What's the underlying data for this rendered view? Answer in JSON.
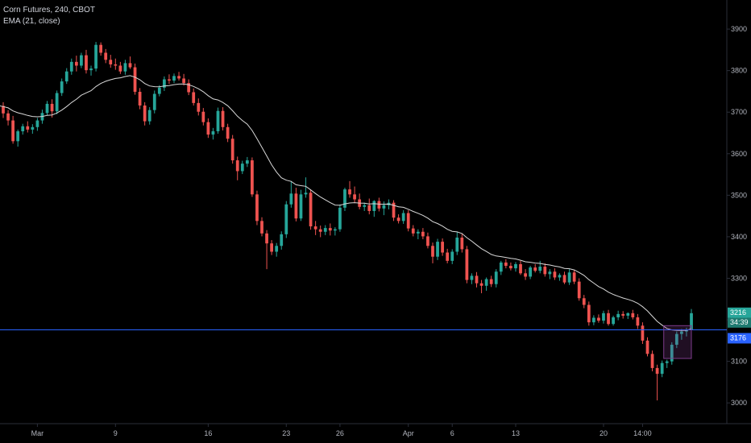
{
  "legend": {
    "title": "Corn Futures, 240, CBOT",
    "indicator": "EMA (21, close)"
  },
  "colors": {
    "background": "#000000",
    "up": "#26a69a",
    "down": "#ef5350",
    "ema": "#d9d9d9",
    "priceline": "#2962ff",
    "axis_text": "#b2b5be",
    "axis_line": "#2a2e39",
    "box": "#7e3c8c"
  },
  "price_badges": {
    "last": "3216",
    "countdown": "34:39",
    "line": "3176"
  },
  "chart_data": {
    "type": "candlestick",
    "title": "",
    "y_ticks": [
      "3900",
      "3800",
      "3700",
      "3600",
      "3500",
      "3400",
      "3300",
      "3200",
      "3100",
      "3000"
    ],
    "x_ticks": [
      "Mar",
      "9",
      "16",
      "23",
      "26",
      "Apr",
      "6",
      "13",
      "20",
      "14:00"
    ],
    "ylim": [
      2950,
      3970
    ],
    "horizontal_line": 3176,
    "candles": [
      [
        3715,
        3724,
        3686,
        3697
      ],
      [
        3697,
        3705,
        3668,
        3680
      ],
      [
        3680,
        3691,
        3624,
        3630
      ],
      [
        3630,
        3658,
        3617,
        3654
      ],
      [
        3654,
        3672,
        3646,
        3666
      ],
      [
        3666,
        3678,
        3651,
        3658
      ],
      [
        3658,
        3671,
        3648,
        3664
      ],
      [
        3664,
        3686,
        3655,
        3680
      ],
      [
        3680,
        3706,
        3672,
        3698
      ],
      [
        3698,
        3727,
        3692,
        3720
      ],
      [
        3720,
        3731,
        3687,
        3702
      ],
      [
        3702,
        3752,
        3695,
        3746
      ],
      [
        3746,
        3781,
        3739,
        3774
      ],
      [
        3774,
        3806,
        3768,
        3798
      ],
      [
        3798,
        3829,
        3790,
        3821
      ],
      [
        3821,
        3836,
        3798,
        3812
      ],
      [
        3812,
        3843,
        3806,
        3837
      ],
      [
        3837,
        3850,
        3793,
        3801
      ],
      [
        3801,
        3812,
        3788,
        3805
      ],
      [
        3805,
        3869,
        3798,
        3862
      ],
      [
        3862,
        3868,
        3836,
        3843
      ],
      [
        3843,
        3852,
        3818,
        3826
      ],
      [
        3826,
        3838,
        3807,
        3815
      ],
      [
        3815,
        3829,
        3802,
        3812
      ],
      [
        3812,
        3821,
        3792,
        3798
      ],
      [
        3798,
        3826,
        3790,
        3818
      ],
      [
        3818,
        3834,
        3804,
        3808
      ],
      [
        3808,
        3817,
        3742,
        3749
      ],
      [
        3749,
        3758,
        3707,
        3716
      ],
      [
        3716,
        3724,
        3668,
        3678
      ],
      [
        3678,
        3712,
        3670,
        3705
      ],
      [
        3705,
        3752,
        3697,
        3744
      ],
      [
        3744,
        3765,
        3738,
        3759
      ],
      [
        3759,
        3786,
        3751,
        3779
      ],
      [
        3779,
        3791,
        3768,
        3776
      ],
      [
        3776,
        3793,
        3770,
        3787
      ],
      [
        3787,
        3797,
        3776,
        3781
      ],
      [
        3781,
        3792,
        3764,
        3770
      ],
      [
        3770,
        3779,
        3741,
        3748
      ],
      [
        3748,
        3757,
        3716,
        3722
      ],
      [
        3722,
        3733,
        3692,
        3701
      ],
      [
        3701,
        3710,
        3668,
        3676
      ],
      [
        3676,
        3685,
        3638,
        3646
      ],
      [
        3646,
        3662,
        3634,
        3654
      ],
      [
        3654,
        3711,
        3648,
        3703
      ],
      [
        3703,
        3712,
        3656,
        3664
      ],
      [
        3664,
        3672,
        3628,
        3636
      ],
      [
        3636,
        3645,
        3576,
        3584
      ],
      [
        3584,
        3593,
        3536,
        3558
      ],
      [
        3558,
        3583,
        3551,
        3576
      ],
      [
        3576,
        3592,
        3568,
        3584
      ],
      [
        3584,
        3591,
        3496,
        3502
      ],
      [
        3502,
        3511,
        3428,
        3438
      ],
      [
        3438,
        3447,
        3401,
        3408
      ],
      [
        3408,
        3416,
        3322,
        3384
      ],
      [
        3384,
        3392,
        3356,
        3364
      ],
      [
        3364,
        3385,
        3352,
        3378
      ],
      [
        3378,
        3413,
        3369,
        3406
      ],
      [
        3406,
        3486,
        3397,
        3478
      ],
      [
        3478,
        3534,
        3470,
        3504
      ],
      [
        3504,
        3518,
        3437,
        3444
      ],
      [
        3444,
        3513,
        3438,
        3502
      ],
      [
        3502,
        3543,
        3494,
        3506
      ],
      [
        3506,
        3514,
        3417,
        3425
      ],
      [
        3425,
        3438,
        3404,
        3418
      ],
      [
        3418,
        3427,
        3399,
        3412
      ],
      [
        3412,
        3428,
        3404,
        3421
      ],
      [
        3421,
        3432,
        3403,
        3415
      ],
      [
        3415,
        3423,
        3403,
        3418
      ],
      [
        3418,
        3478,
        3412,
        3470
      ],
      [
        3470,
        3518,
        3462,
        3514
      ],
      [
        3514,
        3534,
        3494,
        3502
      ],
      [
        3502,
        3521,
        3481,
        3490
      ],
      [
        3490,
        3504,
        3466,
        3472
      ],
      [
        3472,
        3482,
        3462,
        3476
      ],
      [
        3476,
        3492,
        3454,
        3462
      ],
      [
        3462,
        3488,
        3448,
        3486
      ],
      [
        3486,
        3494,
        3461,
        3468
      ],
      [
        3468,
        3485,
        3452,
        3476
      ],
      [
        3476,
        3490,
        3466,
        3482
      ],
      [
        3482,
        3488,
        3438,
        3446
      ],
      [
        3446,
        3454,
        3432,
        3438
      ],
      [
        3438,
        3464,
        3431,
        3457
      ],
      [
        3457,
        3464,
        3413,
        3420
      ],
      [
        3420,
        3428,
        3401,
        3408
      ],
      [
        3408,
        3418,
        3394,
        3412
      ],
      [
        3412,
        3421,
        3394,
        3401
      ],
      [
        3401,
        3410,
        3372,
        3378
      ],
      [
        3378,
        3386,
        3336,
        3352
      ],
      [
        3352,
        3395,
        3344,
        3388
      ],
      [
        3388,
        3396,
        3354,
        3362
      ],
      [
        3362,
        3371,
        3336,
        3342
      ],
      [
        3342,
        3370,
        3334,
        3364
      ],
      [
        3364,
        3412,
        3356,
        3398
      ],
      [
        3398,
        3408,
        3362,
        3370
      ],
      [
        3370,
        3378,
        3288,
        3296
      ],
      [
        3296,
        3312,
        3286,
        3306
      ],
      [
        3306,
        3315,
        3278,
        3288
      ],
      [
        3288,
        3296,
        3264,
        3282
      ],
      [
        3282,
        3302,
        3270,
        3298
      ],
      [
        3298,
        3306,
        3279,
        3286
      ],
      [
        3286,
        3322,
        3278,
        3316
      ],
      [
        3316,
        3342,
        3308,
        3338
      ],
      [
        3338,
        3346,
        3324,
        3330
      ],
      [
        3330,
        3338,
        3319,
        3324
      ],
      [
        3324,
        3339,
        3316,
        3334
      ],
      [
        3334,
        3342,
        3308,
        3312
      ],
      [
        3312,
        3322,
        3296,
        3304
      ],
      [
        3304,
        3330,
        3298,
        3326
      ],
      [
        3326,
        3334,
        3314,
        3318
      ],
      [
        3318,
        3342,
        3312,
        3328
      ],
      [
        3328,
        3336,
        3304,
        3310
      ],
      [
        3310,
        3322,
        3298,
        3316
      ],
      [
        3316,
        3324,
        3296,
        3302
      ],
      [
        3302,
        3312,
        3294,
        3308
      ],
      [
        3308,
        3316,
        3286,
        3290
      ],
      [
        3290,
        3322,
        3284,
        3314
      ],
      [
        3314,
        3320,
        3286,
        3292
      ],
      [
        3292,
        3300,
        3246,
        3252
      ],
      [
        3252,
        3260,
        3228,
        3236
      ],
      [
        3236,
        3244,
        3186,
        3194
      ],
      [
        3194,
        3211,
        3187,
        3205
      ],
      [
        3205,
        3213,
        3193,
        3198
      ],
      [
        3198,
        3222,
        3191,
        3216
      ],
      [
        3216,
        3224,
        3186,
        3190
      ],
      [
        3190,
        3210,
        3186,
        3206
      ],
      [
        3206,
        3222,
        3199,
        3214
      ],
      [
        3214,
        3221,
        3203,
        3210
      ],
      [
        3210,
        3218,
        3202,
        3216
      ],
      [
        3216,
        3224,
        3201,
        3206
      ],
      [
        3206,
        3214,
        3178,
        3186
      ],
      [
        3186,
        3194,
        3142,
        3150
      ],
      [
        3150,
        3158,
        3112,
        3118
      ],
      [
        3118,
        3126,
        3076,
        3084
      ],
      [
        3084,
        3092,
        3006,
        3070
      ],
      [
        3070,
        3102,
        3062,
        3096
      ],
      [
        3096,
        3104,
        3084,
        3100
      ],
      [
        3100,
        3146,
        3092,
        3140
      ],
      [
        3140,
        3172,
        3132,
        3166
      ],
      [
        3166,
        3178,
        3152,
        3172
      ],
      [
        3172,
        3181,
        3160,
        3176
      ],
      [
        3176,
        3226,
        3170,
        3216
      ]
    ]
  }
}
